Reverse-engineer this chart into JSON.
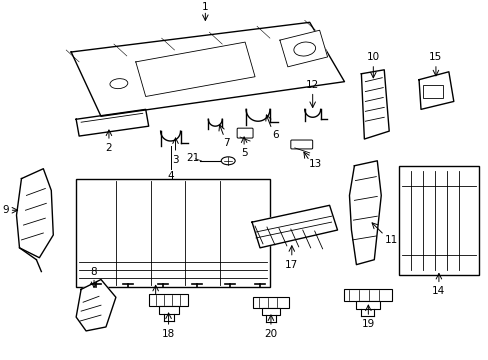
{
  "background_color": "#ffffff",
  "line_color": "#000000",
  "text_color": "#000000",
  "figure_width": 4.89,
  "figure_height": 3.6,
  "dpi": 100
}
